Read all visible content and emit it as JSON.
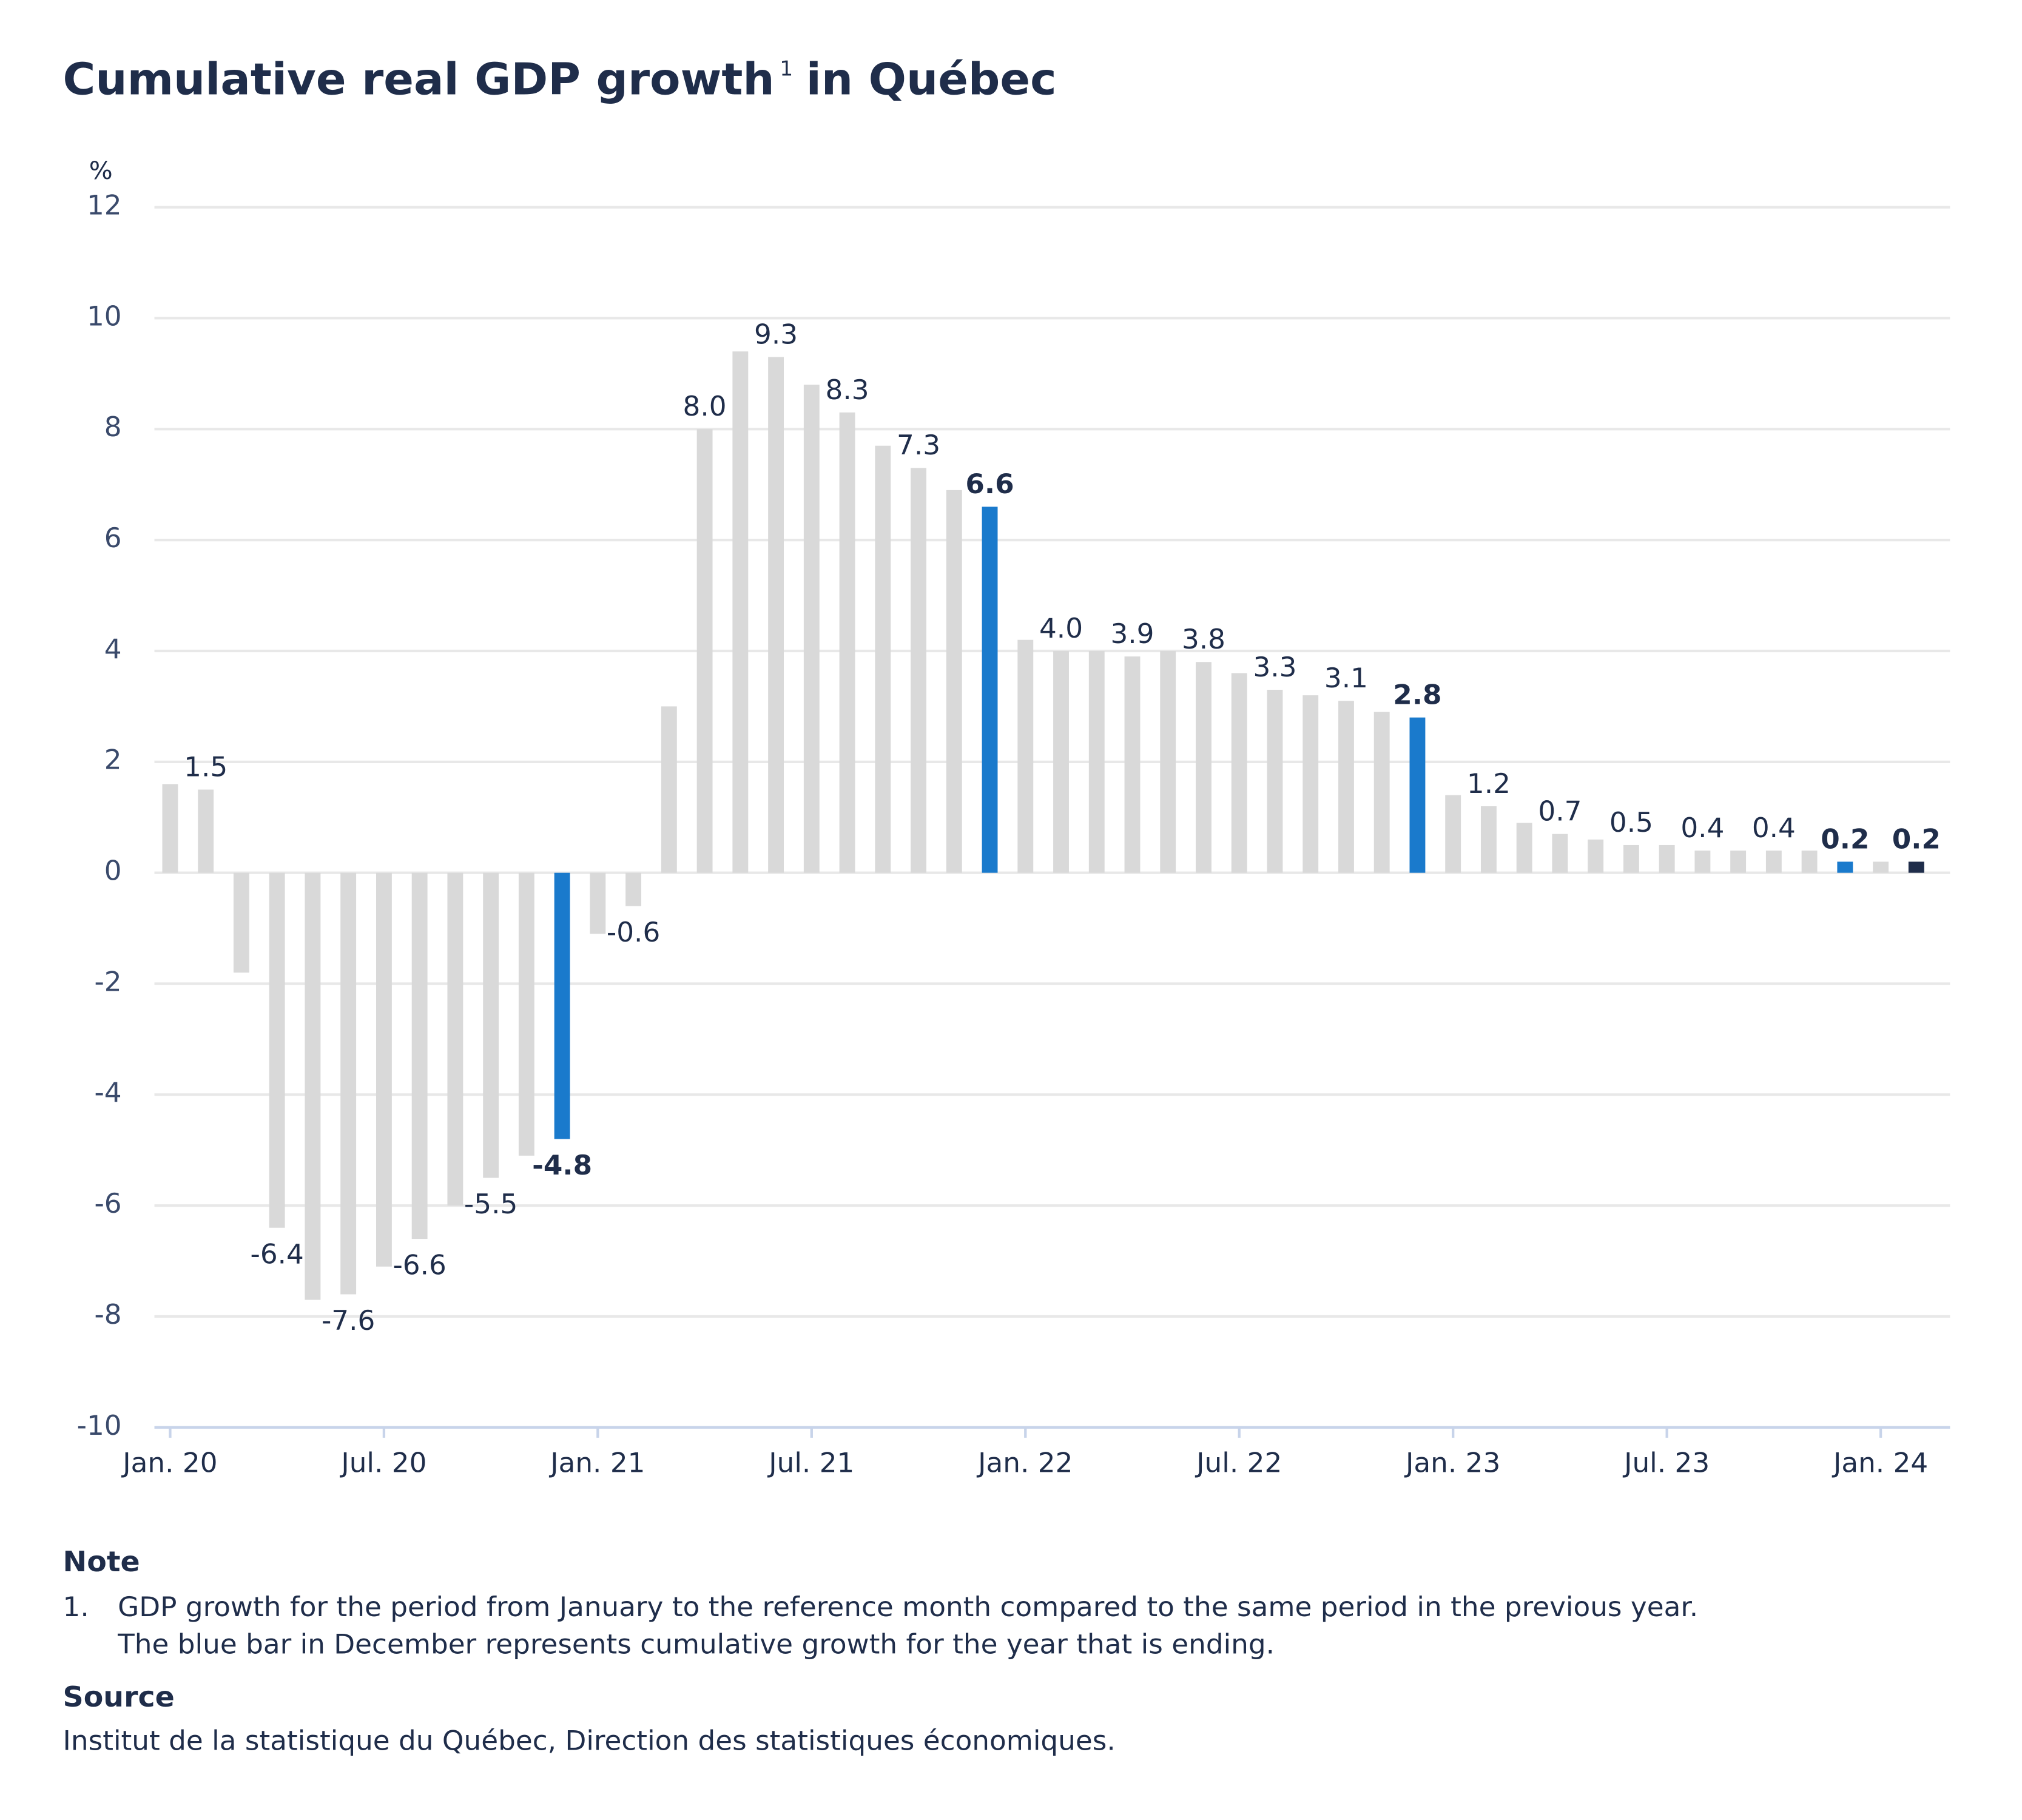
{
  "chart_data": {
    "type": "bar",
    "title": "Cumulative real GDP growth",
    "title_superscript": "1",
    "title_end": "in Québec",
    "y_unit": "%",
    "categories": [
      "Jan. 20",
      null,
      null,
      null,
      null,
      null,
      "Jul. 20",
      null,
      null,
      null,
      null,
      null,
      "Jan. 21",
      null,
      null,
      null,
      null,
      null,
      "Jul. 21",
      null,
      null,
      null,
      null,
      null,
      "Jan. 22",
      null,
      null,
      null,
      null,
      null,
      "Jul. 22",
      null,
      null,
      null,
      null,
      null,
      "Jan. 23",
      null,
      null,
      null,
      null,
      null,
      "Jul. 23",
      null,
      null,
      null,
      null,
      null,
      "Jan. 24",
      null
    ],
    "values": [
      1.6,
      1.5,
      -1.8,
      -6.4,
      -7.7,
      -7.6,
      -7.1,
      -6.6,
      -6.0,
      -5.5,
      -5.1,
      -4.8,
      -1.1,
      -0.6,
      3.0,
      8.0,
      9.4,
      9.3,
      8.8,
      8.3,
      7.7,
      7.3,
      6.9,
      6.6,
      4.2,
      4.0,
      4.0,
      3.9,
      4.0,
      3.8,
      3.6,
      3.3,
      3.2,
      3.1,
      2.9,
      2.8,
      1.4,
      1.2,
      0.9,
      0.7,
      0.6,
      0.5,
      0.5,
      0.4,
      0.4,
      0.4,
      0.4,
      0.2,
      0.2,
      0.2
    ],
    "value_labels": [
      null,
      "1.5",
      null,
      "-6.4",
      null,
      "-7.6",
      null,
      "-6.6",
      null,
      "-5.5",
      null,
      "-4.8",
      null,
      "-0.6",
      null,
      "8.0",
      null,
      "9.3",
      null,
      "8.3",
      null,
      "7.3",
      null,
      "6.6",
      null,
      "4.0",
      null,
      "3.9",
      null,
      "3.8",
      null,
      "3.3",
      null,
      "3.1",
      null,
      "2.8",
      null,
      "1.2",
      null,
      "0.7",
      null,
      "0.5",
      null,
      "0.4",
      null,
      "0.4",
      null,
      "0.2",
      null,
      "0.2"
    ],
    "colors": [
      "#d9d9d9",
      "#d9d9d9",
      "#d9d9d9",
      "#d9d9d9",
      "#d9d9d9",
      "#d9d9d9",
      "#d9d9d9",
      "#d9d9d9",
      "#d9d9d9",
      "#d9d9d9",
      "#d9d9d9",
      "#1a7acc",
      "#d9d9d9",
      "#d9d9d9",
      "#d9d9d9",
      "#d9d9d9",
      "#d9d9d9",
      "#d9d9d9",
      "#d9d9d9",
      "#d9d9d9",
      "#d9d9d9",
      "#d9d9d9",
      "#d9d9d9",
      "#1a7acc",
      "#d9d9d9",
      "#d9d9d9",
      "#d9d9d9",
      "#d9d9d9",
      "#d9d9d9",
      "#d9d9d9",
      "#d9d9d9",
      "#d9d9d9",
      "#d9d9d9",
      "#d9d9d9",
      "#d9d9d9",
      "#1a7acc",
      "#d9d9d9",
      "#d9d9d9",
      "#d9d9d9",
      "#d9d9d9",
      "#d9d9d9",
      "#d9d9d9",
      "#d9d9d9",
      "#d9d9d9",
      "#d9d9d9",
      "#d9d9d9",
      "#d9d9d9",
      "#1a7acc",
      "#d9d9d9",
      "#1f2d4a"
    ],
    "ylim": [
      -10,
      12
    ],
    "yticks": [
      -10,
      -8,
      -6,
      -4,
      -2,
      0,
      2,
      4,
      6,
      8,
      10,
      12
    ],
    "grid": true
  },
  "note": {
    "heading": "Note",
    "number": "1.",
    "lines": [
      "GDP growth for the period from January to the reference month compared to the same period in the previous year.",
      "The blue bar in December represents cumulative growth for the year that is ending."
    ]
  },
  "source": {
    "heading": "Source",
    "text": "Institut de la statistique du Québec, Direction des statistiques économiques."
  }
}
